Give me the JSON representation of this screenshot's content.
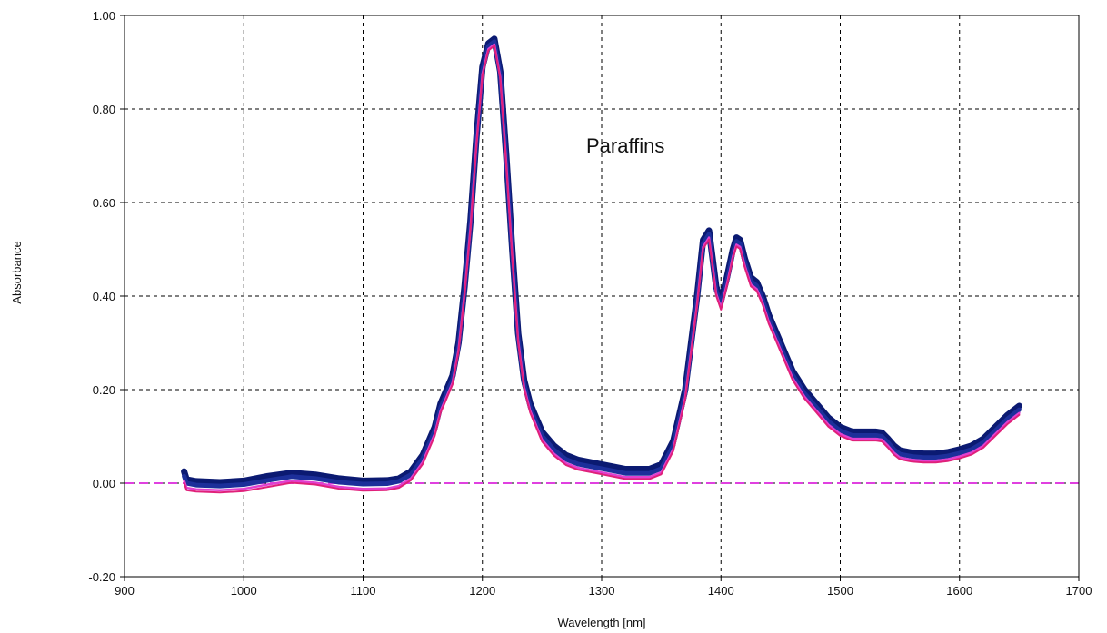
{
  "chart_data": {
    "type": "line",
    "title": "",
    "xlabel": "Wavelength [nm]",
    "ylabel": "Absorbance",
    "annotation": "Paraffins",
    "xlim": [
      900,
      1700
    ],
    "ylim": [
      -0.2,
      1.0
    ],
    "x_ticks": [
      900,
      1000,
      1100,
      1200,
      1300,
      1400,
      1500,
      1600,
      1700
    ],
    "y_ticks": [
      -0.2,
      0.0,
      0.2,
      0.4,
      0.6,
      0.8,
      1.0
    ],
    "x_tick_labels": [
      "900",
      "1000",
      "1100",
      "1200",
      "1300",
      "1400",
      "1500",
      "1600",
      "1700"
    ],
    "y_tick_labels": [
      "-0.20",
      "0.00",
      "0.20",
      "0.40",
      "0.60",
      "0.80",
      "1.00"
    ],
    "grid": true,
    "reference_line": {
      "y": 0.0,
      "color": "#e040e0"
    },
    "colors": {
      "band_dark": "#0b1a72",
      "band_mid": "#1c2f9a",
      "band_low": "#e0207a",
      "band_pink": "#e040d0",
      "grid": "#000000"
    },
    "series": [
      {
        "color": "#0b1a72",
        "x": [
          950,
          952,
          960,
          980,
          1000,
          1020,
          1040,
          1060,
          1080,
          1100,
          1120,
          1130,
          1140,
          1150,
          1160,
          1165,
          1170,
          1175,
          1180,
          1185,
          1190,
          1195,
          1200,
          1205,
          1210,
          1215,
          1220,
          1225,
          1230,
          1235,
          1240,
          1250,
          1260,
          1270,
          1280,
          1300,
          1320,
          1340,
          1350,
          1360,
          1370,
          1380,
          1385,
          1390,
          1393,
          1396,
          1400,
          1405,
          1410,
          1413,
          1416,
          1420,
          1425,
          1430,
          1435,
          1440,
          1450,
          1460,
          1470,
          1480,
          1490,
          1500,
          1510,
          1520,
          1530,
          1535,
          1540,
          1545,
          1550,
          1560,
          1570,
          1580,
          1590,
          1600,
          1610,
          1620,
          1630,
          1640,
          1650
        ],
        "y": [
          0.025,
          0.008,
          0.004,
          0.002,
          0.005,
          0.015,
          0.022,
          0.018,
          0.01,
          0.005,
          0.006,
          0.01,
          0.025,
          0.06,
          0.12,
          0.17,
          0.2,
          0.23,
          0.3,
          0.42,
          0.56,
          0.74,
          0.89,
          0.94,
          0.95,
          0.88,
          0.7,
          0.5,
          0.32,
          0.22,
          0.17,
          0.11,
          0.08,
          0.06,
          0.05,
          0.04,
          0.03,
          0.03,
          0.04,
          0.09,
          0.2,
          0.4,
          0.52,
          0.54,
          0.48,
          0.42,
          0.39,
          0.44,
          0.5,
          0.525,
          0.52,
          0.48,
          0.44,
          0.43,
          0.4,
          0.36,
          0.3,
          0.24,
          0.2,
          0.17,
          0.14,
          0.12,
          0.11,
          0.11,
          0.11,
          0.108,
          0.095,
          0.08,
          0.07,
          0.065,
          0.063,
          0.063,
          0.066,
          0.072,
          0.08,
          0.095,
          0.12,
          0.145,
          0.165
        ]
      },
      {
        "color": "#1c2f9a",
        "x": [
          950,
          952,
          960,
          980,
          1000,
          1020,
          1040,
          1060,
          1080,
          1100,
          1120,
          1130,
          1140,
          1150,
          1160,
          1165,
          1170,
          1175,
          1180,
          1185,
          1190,
          1195,
          1200,
          1205,
          1210,
          1215,
          1220,
          1225,
          1230,
          1235,
          1240,
          1250,
          1260,
          1270,
          1280,
          1300,
          1320,
          1340,
          1350,
          1360,
          1370,
          1380,
          1385,
          1390,
          1393,
          1396,
          1400,
          1405,
          1410,
          1413,
          1416,
          1420,
          1425,
          1430,
          1435,
          1440,
          1450,
          1460,
          1470,
          1480,
          1490,
          1500,
          1510,
          1520,
          1530,
          1535,
          1540,
          1545,
          1550,
          1560,
          1570,
          1580,
          1590,
          1600,
          1610,
          1620,
          1630,
          1640,
          1650
        ],
        "y": [
          0.015,
          0.0,
          -0.004,
          -0.006,
          -0.003,
          0.006,
          0.014,
          0.01,
          0.002,
          -0.002,
          -0.001,
          0.004,
          0.018,
          0.053,
          0.112,
          0.162,
          0.192,
          0.222,
          0.292,
          0.412,
          0.552,
          0.732,
          0.882,
          0.934,
          0.944,
          0.874,
          0.692,
          0.492,
          0.312,
          0.212,
          0.162,
          0.101,
          0.071,
          0.051,
          0.041,
          0.031,
          0.021,
          0.021,
          0.031,
          0.081,
          0.191,
          0.391,
          0.512,
          0.532,
          0.472,
          0.412,
          0.382,
          0.432,
          0.492,
          0.517,
          0.512,
          0.472,
          0.432,
          0.422,
          0.392,
          0.352,
          0.292,
          0.232,
          0.192,
          0.162,
          0.132,
          0.112,
          0.102,
          0.102,
          0.102,
          0.1,
          0.087,
          0.072,
          0.062,
          0.057,
          0.055,
          0.055,
          0.058,
          0.064,
          0.072,
          0.087,
          0.112,
          0.137,
          0.157
        ]
      },
      {
        "color": "#e040d0",
        "x": [
          950,
          952,
          960,
          980,
          1000,
          1020,
          1040,
          1060,
          1080,
          1100,
          1120,
          1130,
          1140,
          1150,
          1160,
          1165,
          1170,
          1175,
          1180,
          1185,
          1190,
          1195,
          1200,
          1205,
          1210,
          1215,
          1220,
          1225,
          1230,
          1235,
          1240,
          1250,
          1260,
          1270,
          1280,
          1300,
          1320,
          1340,
          1350,
          1360,
          1370,
          1380,
          1385,
          1390,
          1393,
          1396,
          1400,
          1405,
          1410,
          1413,
          1416,
          1420,
          1425,
          1430,
          1435,
          1440,
          1450,
          1460,
          1470,
          1480,
          1490,
          1500,
          1510,
          1520,
          1530,
          1535,
          1540,
          1545,
          1550,
          1560,
          1570,
          1580,
          1590,
          1600,
          1610,
          1620,
          1630,
          1640,
          1650
        ],
        "y": [
          0.005,
          -0.01,
          -0.013,
          -0.015,
          -0.012,
          -0.003,
          0.005,
          0.001,
          -0.008,
          -0.012,
          -0.011,
          -0.006,
          0.01,
          0.045,
          0.105,
          0.155,
          0.185,
          0.215,
          0.285,
          0.405,
          0.545,
          0.725,
          0.875,
          0.928,
          0.938,
          0.868,
          0.685,
          0.485,
          0.305,
          0.205,
          0.155,
          0.093,
          0.063,
          0.043,
          0.033,
          0.023,
          0.013,
          0.013,
          0.023,
          0.073,
          0.183,
          0.383,
          0.505,
          0.525,
          0.465,
          0.405,
          0.375,
          0.425,
          0.485,
          0.51,
          0.505,
          0.465,
          0.425,
          0.415,
          0.385,
          0.345,
          0.285,
          0.225,
          0.185,
          0.155,
          0.125,
          0.105,
          0.095,
          0.095,
          0.095,
          0.093,
          0.08,
          0.065,
          0.055,
          0.05,
          0.048,
          0.048,
          0.051,
          0.057,
          0.065,
          0.08,
          0.105,
          0.13,
          0.15
        ]
      },
      {
        "color": "#e0207a",
        "x": [
          950,
          952,
          960,
          980,
          1000,
          1020,
          1040,
          1060,
          1080,
          1100,
          1120,
          1130,
          1140,
          1150,
          1160,
          1165,
          1170,
          1175,
          1180,
          1185,
          1190,
          1195,
          1200,
          1205,
          1210,
          1215,
          1220,
          1225,
          1230,
          1235,
          1240,
          1250,
          1260,
          1270,
          1280,
          1300,
          1320,
          1340,
          1350,
          1360,
          1370,
          1380,
          1385,
          1390,
          1393,
          1396,
          1400,
          1405,
          1410,
          1413,
          1416,
          1420,
          1425,
          1430,
          1435,
          1440,
          1450,
          1460,
          1470,
          1480,
          1490,
          1500,
          1510,
          1520,
          1530,
          1535,
          1540,
          1545,
          1550,
          1560,
          1570,
          1580,
          1590,
          1600,
          1610,
          1620,
          1630,
          1640,
          1650
        ],
        "y": [
          0.0,
          -0.015,
          -0.018,
          -0.02,
          -0.017,
          -0.008,
          0.001,
          -0.003,
          -0.012,
          -0.016,
          -0.015,
          -0.01,
          0.006,
          0.041,
          0.101,
          0.151,
          0.181,
          0.211,
          0.281,
          0.401,
          0.541,
          0.721,
          0.871,
          0.925,
          0.935,
          0.865,
          0.681,
          0.481,
          0.301,
          0.201,
          0.151,
          0.089,
          0.059,
          0.039,
          0.029,
          0.019,
          0.009,
          0.009,
          0.019,
          0.069,
          0.179,
          0.379,
          0.501,
          0.521,
          0.461,
          0.401,
          0.371,
          0.421,
          0.481,
          0.506,
          0.501,
          0.461,
          0.421,
          0.411,
          0.381,
          0.341,
          0.281,
          0.221,
          0.181,
          0.151,
          0.121,
          0.101,
          0.091,
          0.091,
          0.091,
          0.089,
          0.076,
          0.061,
          0.051,
          0.046,
          0.044,
          0.044,
          0.047,
          0.053,
          0.061,
          0.076,
          0.101,
          0.126,
          0.146
        ]
      }
    ]
  }
}
